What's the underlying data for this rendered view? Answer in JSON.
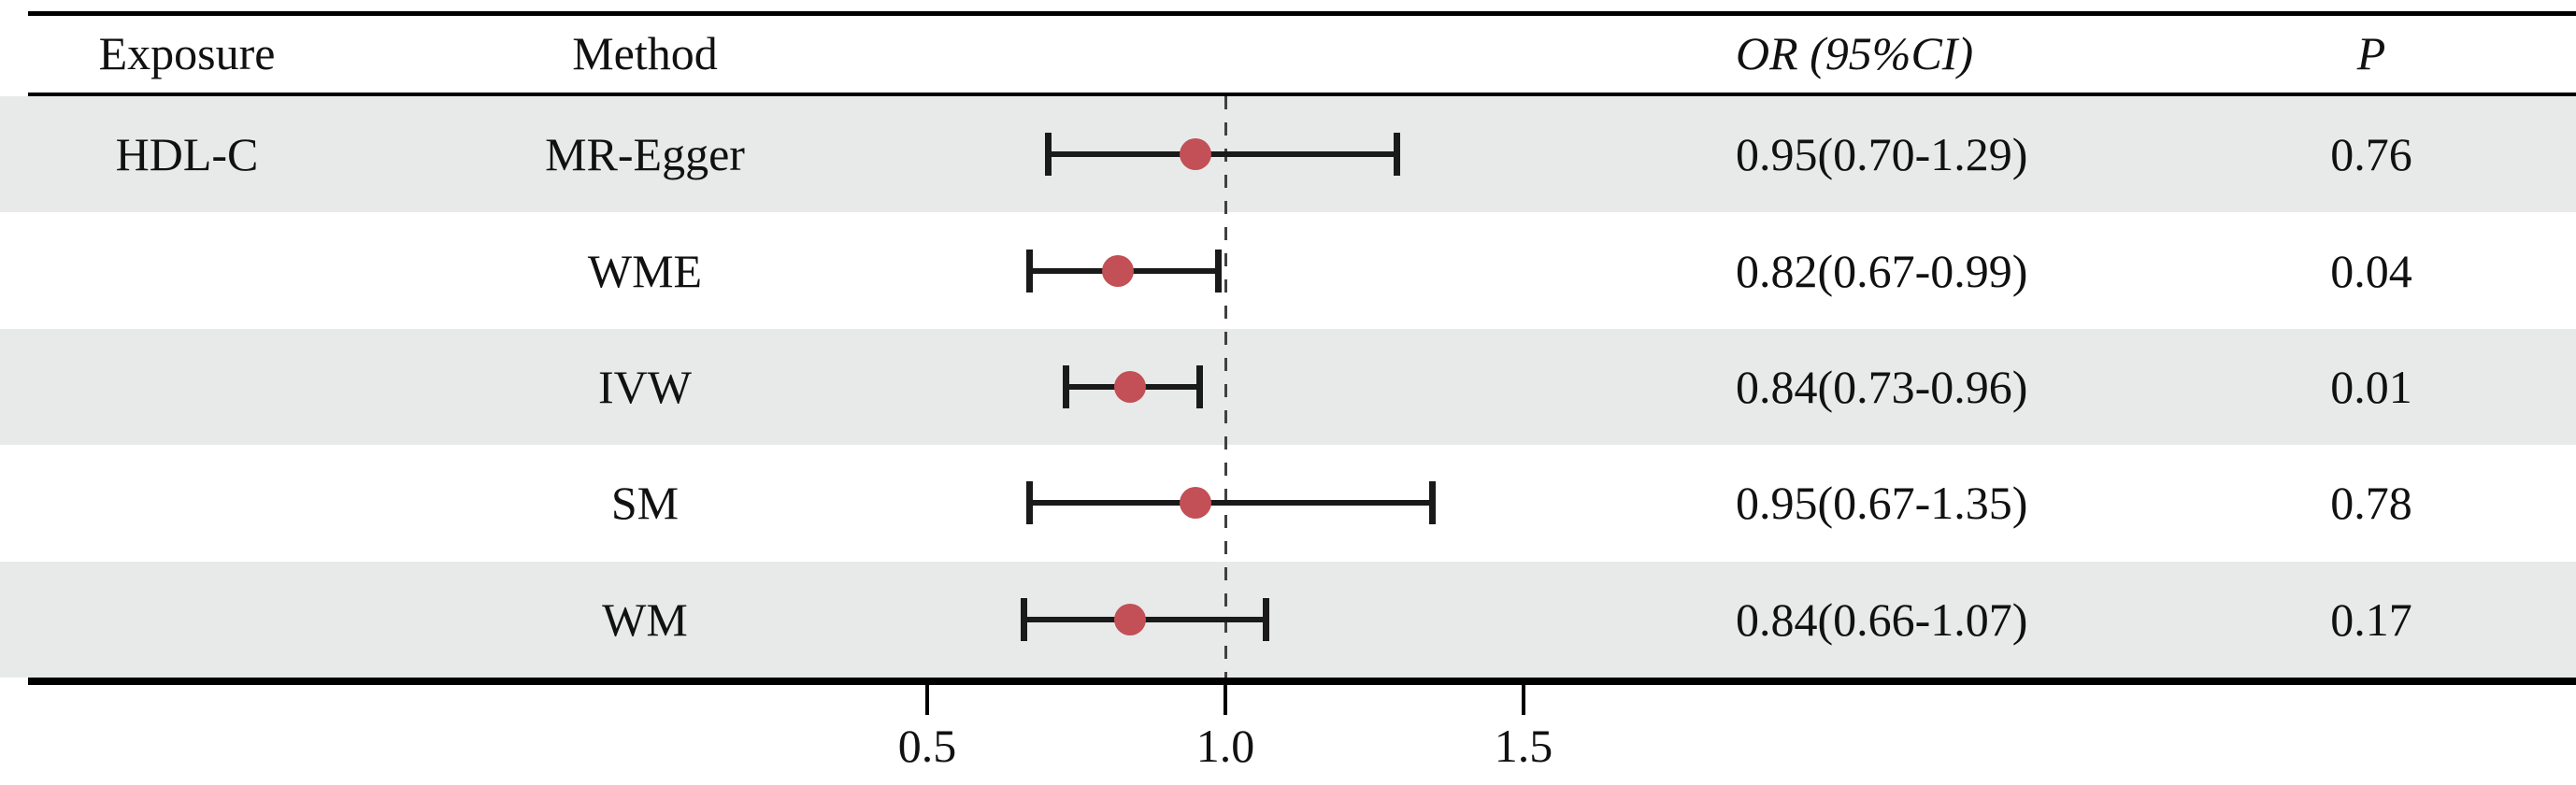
{
  "header": {
    "exposure": "Exposure",
    "method": "Method",
    "or_ci": "OR (95%CI)",
    "p": "P"
  },
  "chart_data": {
    "type": "forest",
    "exposure": "HDL-C",
    "rows": [
      {
        "method": "MR-Egger",
        "or": 0.95,
        "lo": 0.7,
        "hi": 1.29,
        "or_ci_text": "0.95(0.70-1.29)",
        "p_text": "0.76"
      },
      {
        "method": "WME",
        "or": 0.82,
        "lo": 0.67,
        "hi": 0.99,
        "or_ci_text": "0.82(0.67-0.99)",
        "p_text": "0.04"
      },
      {
        "method": "IVW",
        "or": 0.84,
        "lo": 0.73,
        "hi": 0.96,
        "or_ci_text": "0.84(0.73-0.96)",
        "p_text": "0.01"
      },
      {
        "method": "SM",
        "or": 0.95,
        "lo": 0.67,
        "hi": 1.35,
        "or_ci_text": "0.95(0.67-1.35)",
        "p_text": "0.78"
      },
      {
        "method": "WM",
        "or": 0.84,
        "lo": 0.66,
        "hi": 1.07,
        "or_ci_text": "0.84(0.66-1.07)",
        "p_text": "0.17"
      }
    ],
    "x_axis": {
      "ticks": [
        0.5,
        1.0,
        1.5
      ],
      "tick_labels": [
        "0.5",
        "1.0",
        "1.5"
      ],
      "ref_line": 1.0
    },
    "layout_hints": {
      "grid": false,
      "legend": "none",
      "shaded_rows": "odd"
    },
    "colors": {
      "marker": "#c25056",
      "ci_line": "#1a1a1a",
      "row_shade": "#e8eaea",
      "ref_line": "#404040",
      "rule": "#000000"
    }
  }
}
